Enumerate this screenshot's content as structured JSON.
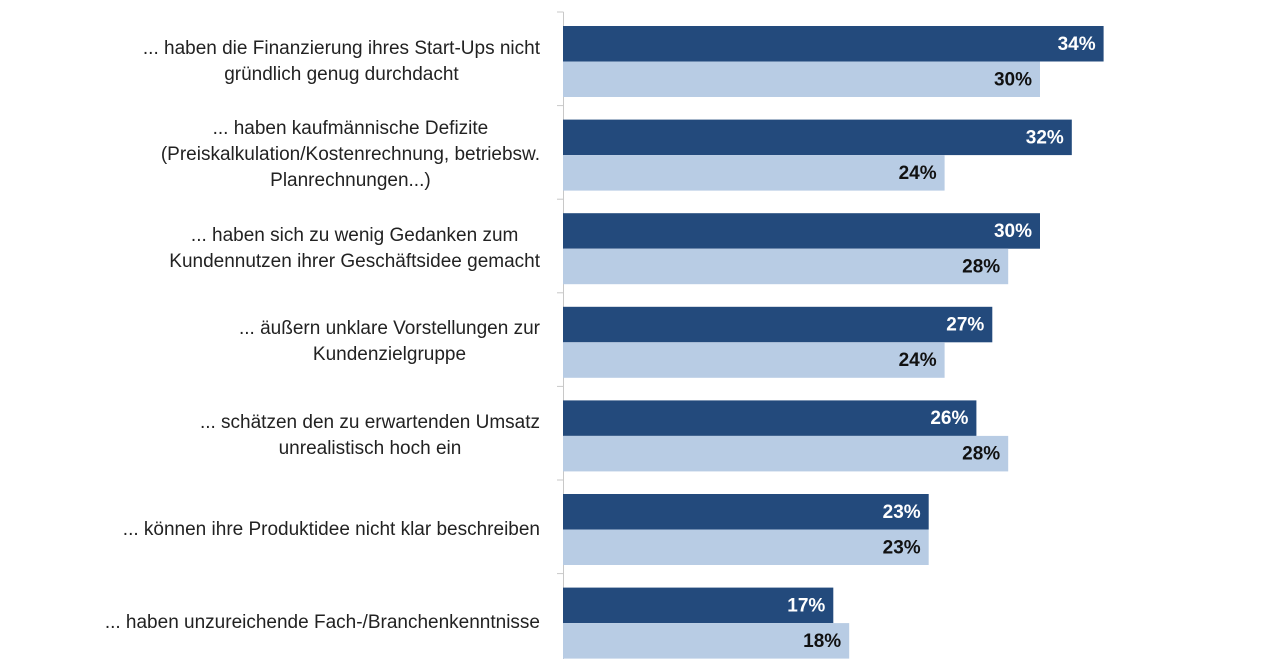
{
  "chart_data": {
    "type": "bar",
    "orientation": "horizontal",
    "categories": [
      "... haben die Finanzierung ihres Start-Ups nicht\ngründlich genug durchdacht",
      "... haben kaufmännische Defizite\n(Preiskalkulation/Kostenrechnung, betriebsw.\nPlanrechnungen...)",
      "... haben sich zu wenig Gedanken zum\nKundennutzen ihrer Geschäftsidee gemacht",
      "... äußern unklare Vorstellungen zur\nKundenzielgruppe",
      "... schätzen den zu erwartenden Umsatz\nunrealistisch hoch ein",
      "... können ihre Produktidee nicht klar beschreiben",
      "... haben unzureichende Fach-/Branchenkenntnisse"
    ],
    "series": [
      {
        "color": "#234a7c",
        "label_color": "#ffffff",
        "values": [
          34,
          32,
          30,
          27,
          26,
          23,
          17
        ],
        "value_labels": [
          "34%",
          "32%",
          "30%",
          "27%",
          "26%",
          "23%",
          "17%"
        ]
      },
      {
        "color": "#b8cce4",
        "label_color": "#111111",
        "values": [
          30,
          24,
          28,
          24,
          28,
          23,
          18
        ],
        "value_labels": [
          "30%",
          "24%",
          "28%",
          "24%",
          "28%",
          "23%",
          "18%"
        ]
      }
    ]
  }
}
